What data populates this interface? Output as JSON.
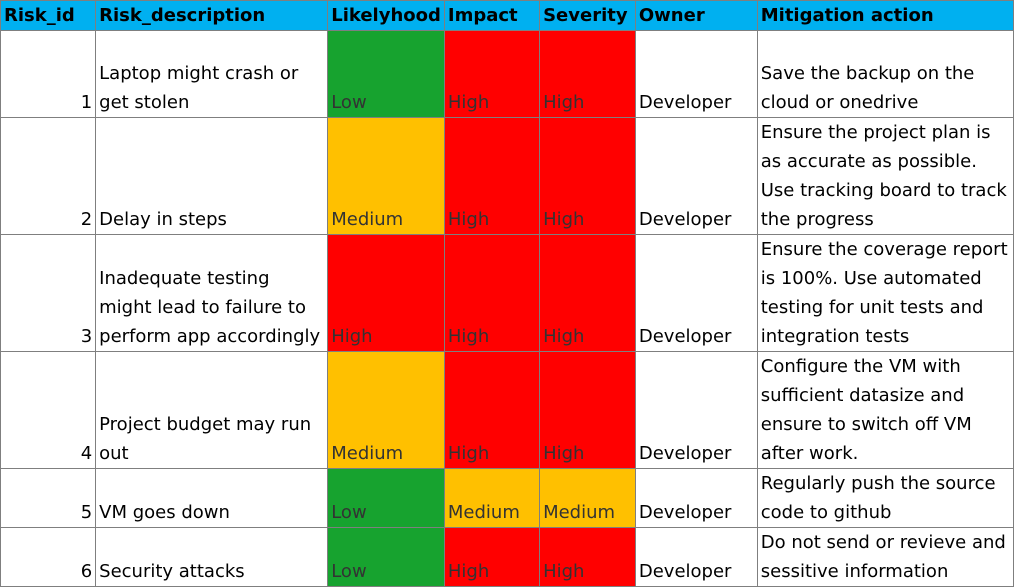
{
  "colors": {
    "header_bg": "#00b0f0",
    "low": "#17a32f",
    "medium": "#ffc000",
    "high": "#ff0000",
    "grid": "#7f7f7f"
  },
  "headers": [
    "Risk_id",
    "Risk_description",
    "Likelyhood",
    "Impact",
    "Severity",
    "Owner",
    "Mitigation action"
  ],
  "rows": [
    {
      "id": "1",
      "description": "Laptop might crash or get stolen",
      "likelyhood": "Low",
      "impact": "High",
      "severity": "High",
      "owner": "Developer",
      "mitigation": "Save the backup on the cloud or onedrive"
    },
    {
      "id": "2",
      "description": "Delay in steps",
      "likelyhood": "Medium",
      "impact": "High",
      "severity": "High",
      "owner": "Developer",
      "mitigation": "Ensure the project plan is as accurate as possible. Use tracking board to track the progress"
    },
    {
      "id": "3",
      "description": "Inadequate testing might lead to failure to perform app accordingly",
      "likelyhood": "High",
      "impact": "High",
      "severity": "High",
      "owner": "Developer",
      "mitigation": "Ensure the coverage report is 100%. Use automated testing for unit tests and integration tests"
    },
    {
      "id": "4",
      "description": "Project budget may run out",
      "likelyhood": "Medium",
      "impact": "High",
      "severity": "High",
      "owner": "Developer",
      "mitigation": "Configure the VM with sufficient datasize and ensure to switch off VM after work."
    },
    {
      "id": "5",
      "description": "VM goes down",
      "likelyhood": "Low",
      "impact": "Medium",
      "severity": "Medium",
      "owner": "Developer",
      "mitigation": "Regularly push the source code to github"
    },
    {
      "id": "6",
      "description": "Security attacks",
      "likelyhood": "Low",
      "impact": "High",
      "severity": "High",
      "owner": "Developer",
      "mitigation": "Do not send or revieve and sessitive information"
    }
  ]
}
